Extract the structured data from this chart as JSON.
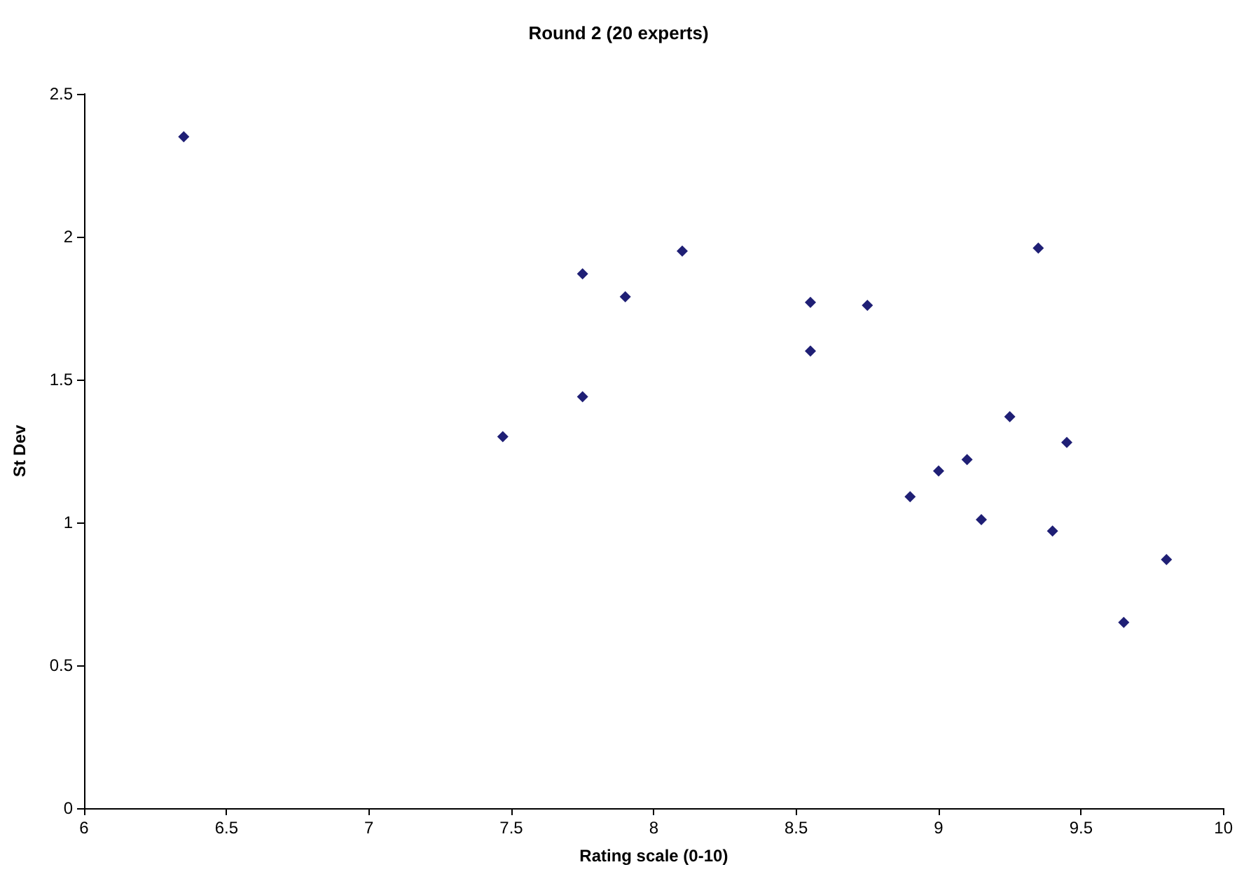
{
  "chart_data": {
    "type": "scatter",
    "title": "Round 2 (20 experts)",
    "xlabel": "Rating scale (0-10)",
    "ylabel": "St Dev",
    "x": [
      6.35,
      7.47,
      7.75,
      7.75,
      7.9,
      8.1,
      8.55,
      8.55,
      8.75,
      8.9,
      9.0,
      9.1,
      9.15,
      9.25,
      9.35,
      9.4,
      9.45,
      9.65,
      9.8
    ],
    "series": [
      {
        "color": "#1f1f75",
        "values": [
          2.35,
          1.3,
          1.87,
          1.44,
          1.79,
          1.95,
          1.77,
          1.6,
          1.76,
          1.09,
          1.18,
          1.22,
          1.01,
          1.37,
          1.96,
          0.97,
          1.28,
          0.65,
          0.87
        ]
      }
    ],
    "xlim": [
      6,
      10
    ],
    "xticks": [
      6,
      6.5,
      7,
      7.5,
      8,
      8.5,
      9,
      9.5,
      10
    ],
    "ylim": [
      0,
      2.5
    ],
    "yticks": [
      0,
      0.5,
      1,
      1.5,
      2,
      2.5
    ],
    "marker": "diamond",
    "grid": false
  }
}
